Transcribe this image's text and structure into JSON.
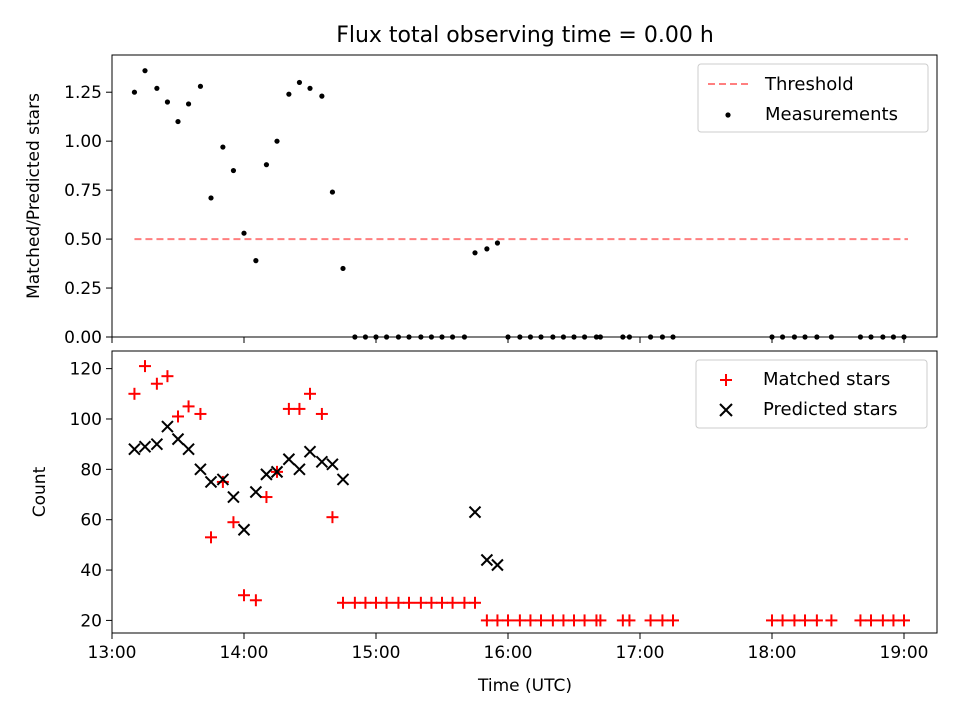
{
  "chart_data": [
    {
      "type": "scatter",
      "title": "Flux total observing time = 0.00 h",
      "xlabel": "",
      "ylabel": "Matched/Predicted stars",
      "xlim": [
        13.0,
        19.25
      ],
      "ylim": [
        0,
        1.44
      ],
      "yticks": [
        0,
        0.25,
        0.5,
        0.75,
        1.0,
        1.25
      ],
      "ytick_labels": [
        "0.00",
        "0.25",
        "0.50",
        "0.75",
        "1.00",
        "1.25"
      ],
      "legend_position": "top-right",
      "legend": [
        "Threshold",
        "Measurements"
      ],
      "threshold": {
        "name": "Threshold",
        "value": 0.5,
        "x_range": [
          13.17,
          19.03
        ],
        "color": "#ff7f7f"
      },
      "series": [
        {
          "name": "Measurements",
          "color": "#000000",
          "x": [
            13.17,
            13.25,
            13.34,
            13.42,
            13.5,
            13.58,
            13.67,
            13.75,
            13.84,
            13.92,
            14.0,
            14.09,
            14.17,
            14.25,
            14.34,
            14.42,
            14.5,
            14.59,
            14.67,
            14.75,
            14.84,
            14.92,
            15.0,
            15.08,
            15.17,
            15.25,
            15.34,
            15.42,
            15.5,
            15.58,
            15.67,
            15.75,
            15.84,
            15.92,
            16.0,
            16.09,
            16.17,
            16.25,
            16.34,
            16.42,
            16.5,
            16.58,
            16.67,
            16.7,
            16.87,
            16.92,
            17.08,
            17.17,
            17.25,
            18.0,
            18.08,
            18.17,
            18.25,
            18.34,
            18.45,
            18.67,
            18.75,
            18.84,
            18.92,
            19.0
          ],
          "y": [
            1.25,
            1.36,
            1.27,
            1.2,
            1.1,
            1.19,
            1.28,
            0.71,
            0.97,
            0.85,
            0.53,
            0.39,
            0.88,
            1.0,
            1.24,
            1.3,
            1.27,
            1.23,
            0.74,
            0.35,
            0.0,
            0.0,
            0.0,
            0.0,
            0.0,
            0.0,
            0.0,
            0.0,
            0.0,
            0.0,
            0.0,
            0.43,
            0.45,
            0.48,
            0.0,
            0.0,
            0.0,
            0.0,
            0.0,
            0.0,
            0.0,
            0.0,
            0.0,
            0.0,
            0.0,
            0.0,
            0.0,
            0.0,
            0.0,
            0.0,
            0.0,
            0.0,
            0.0,
            0.0,
            0.0,
            0.0,
            0.0,
            0.0,
            0.0,
            0.0
          ]
        }
      ]
    },
    {
      "type": "scatter",
      "title": "",
      "xlabel": "Time (UTC)",
      "ylabel": "Count",
      "xlim": [
        13.0,
        19.25
      ],
      "ylim": [
        15,
        127
      ],
      "yticks": [
        20,
        40,
        60,
        80,
        100,
        120
      ],
      "ytick_labels": [
        "20",
        "40",
        "60",
        "80",
        "100",
        "120"
      ],
      "xticks": [
        13,
        14,
        15,
        16,
        17,
        18,
        19
      ],
      "xtick_labels": [
        "13:00",
        "14:00",
        "15:00",
        "16:00",
        "17:00",
        "18:00",
        "19:00"
      ],
      "legend_position": "top-right",
      "legend": [
        "Matched stars",
        "Predicted stars"
      ],
      "series": [
        {
          "name": "Matched stars",
          "marker": "plus",
          "color": "#ff0000",
          "x": [
            13.17,
            13.25,
            13.34,
            13.42,
            13.5,
            13.58,
            13.67,
            13.75,
            13.84,
            13.92,
            14.0,
            14.09,
            14.17,
            14.25,
            14.34,
            14.42,
            14.5,
            14.59,
            14.67,
            14.75,
            14.84,
            14.92,
            15.0,
            15.08,
            15.17,
            15.25,
            15.34,
            15.42,
            15.5,
            15.58,
            15.67,
            15.75,
            15.84,
            15.92,
            16.0,
            16.09,
            16.17,
            16.25,
            16.34,
            16.42,
            16.5,
            16.58,
            16.67,
            16.7,
            16.87,
            16.92,
            17.08,
            17.17,
            17.25,
            18.0,
            18.08,
            18.17,
            18.25,
            18.34,
            18.45,
            18.67,
            18.75,
            18.84,
            18.92,
            19.0
          ],
          "y": [
            110,
            121,
            114,
            117,
            101,
            105,
            102,
            53,
            75,
            59,
            30,
            28,
            69,
            79,
            104,
            104,
            110,
            102,
            61,
            27,
            27,
            27,
            27,
            27,
            27,
            27,
            27,
            27,
            27,
            27,
            27,
            27,
            20,
            20,
            20,
            20,
            20,
            20,
            20,
            20,
            20,
            20,
            20,
            20,
            20,
            20,
            20,
            20,
            20,
            20,
            20,
            20,
            20,
            20,
            20,
            20,
            20,
            20,
            20,
            20
          ]
        },
        {
          "name": "Predicted stars",
          "marker": "x",
          "color": "#000000",
          "x": [
            13.17,
            13.25,
            13.34,
            13.42,
            13.5,
            13.58,
            13.67,
            13.75,
            13.84,
            13.92,
            14.0,
            14.09,
            14.17,
            14.25,
            14.34,
            14.42,
            14.5,
            14.59,
            14.67,
            14.75,
            15.75,
            15.84,
            15.92
          ],
          "y": [
            88,
            89,
            90,
            97,
            92,
            88,
            80,
            75,
            76,
            69,
            56,
            71,
            78,
            79,
            84,
            80,
            87,
            83,
            82,
            76,
            63,
            44,
            42
          ]
        }
      ]
    }
  ]
}
